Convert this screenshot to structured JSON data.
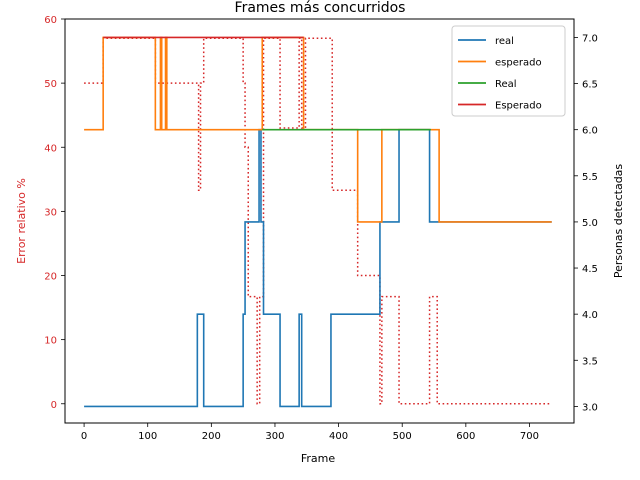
{
  "chart_data": {
    "type": "line",
    "title": "Frames más concurridos",
    "xlabel": "Frame",
    "ylabel_left": "Error relativo %",
    "ylabel_right": "Personas detectadas",
    "xlim": [
      -30,
      770
    ],
    "ylim_left": [
      -3,
      60
    ],
    "ylim_right": [
      2.82,
      7.2
    ],
    "xticks": [
      0,
      100,
      200,
      300,
      400,
      500,
      600,
      700
    ],
    "yticks_left": [
      0,
      10,
      20,
      30,
      40,
      50,
      60
    ],
    "yticks_right": [
      3.0,
      3.5,
      4.0,
      4.5,
      5.0,
      5.5,
      6.0,
      6.5,
      7.0
    ],
    "legend_position": "upper-right",
    "colors": {
      "real": "#1f77b4",
      "esperado": "#ff7f0e",
      "Real": "#2ca02c",
      "Esperado": "#d62728",
      "error": "#d62728",
      "left_axis_text": "#d62728"
    },
    "series": [
      {
        "name": "real",
        "axis": "right",
        "color": "#1f77b4",
        "style": "step",
        "points": [
          [
            0,
            3
          ],
          [
            178,
            3
          ],
          [
            178,
            4
          ],
          [
            188,
            4
          ],
          [
            188,
            3
          ],
          [
            250,
            3
          ],
          [
            250,
            4
          ],
          [
            253,
            4
          ],
          [
            253,
            5
          ],
          [
            275,
            5
          ],
          [
            275,
            6
          ],
          [
            278,
            6
          ],
          [
            278,
            5
          ],
          [
            282,
            5
          ],
          [
            282,
            4
          ],
          [
            308,
            4
          ],
          [
            308,
            3
          ],
          [
            338,
            3
          ],
          [
            338,
            4
          ],
          [
            342,
            4
          ],
          [
            342,
            3
          ],
          [
            388,
            3
          ],
          [
            388,
            4
          ],
          [
            465,
            4
          ],
          [
            465,
            5
          ],
          [
            495,
            5
          ],
          [
            495,
            6
          ],
          [
            543,
            6
          ],
          [
            543,
            5
          ],
          [
            735,
            5
          ]
        ]
      },
      {
        "name": "esperado",
        "axis": "right",
        "color": "#ff7f0e",
        "style": "step",
        "points": [
          [
            0,
            6
          ],
          [
            30,
            6
          ],
          [
            30,
            7
          ],
          [
            112,
            7
          ],
          [
            112,
            6
          ],
          [
            120,
            6
          ],
          [
            120,
            7
          ],
          [
            122,
            7
          ],
          [
            122,
            6
          ],
          [
            128,
            6
          ],
          [
            128,
            7
          ],
          [
            130,
            7
          ],
          [
            130,
            6
          ],
          [
            280,
            6
          ],
          [
            280,
            7
          ],
          [
            345,
            7
          ],
          [
            345,
            6
          ],
          [
            430,
            6
          ],
          [
            430,
            5
          ],
          [
            468,
            5
          ],
          [
            468,
            6
          ],
          [
            558,
            6
          ],
          [
            558,
            5
          ],
          [
            735,
            5
          ]
        ]
      },
      {
        "name": "Real",
        "axis": "right",
        "color": "#2ca02c",
        "style": "step",
        "points": [
          [
            280,
            6
          ],
          [
            545,
            6
          ]
        ]
      },
      {
        "name": "Esperado",
        "axis": "right",
        "color": "#d62728",
        "style": "step",
        "points": [
          [
            30,
            7
          ],
          [
            345,
            7
          ]
        ]
      },
      {
        "name": "",
        "axis": "left",
        "color": "#d62728",
        "style": "dotted-step",
        "points": [
          [
            0,
            50
          ],
          [
            30,
            50
          ],
          [
            30,
            57
          ],
          [
            112,
            57
          ],
          [
            112,
            50
          ],
          [
            180,
            50
          ],
          [
            180,
            33.3
          ],
          [
            183,
            33.3
          ],
          [
            183,
            50
          ],
          [
            188,
            50
          ],
          [
            188,
            57
          ],
          [
            250,
            57
          ],
          [
            250,
            50
          ],
          [
            253,
            50
          ],
          [
            253,
            40
          ],
          [
            258,
            40
          ],
          [
            258,
            16.7
          ],
          [
            272,
            16.7
          ],
          [
            272,
            0
          ],
          [
            276,
            0
          ],
          [
            276,
            16.7
          ],
          [
            282,
            16.7
          ],
          [
            282,
            57
          ],
          [
            308,
            57
          ],
          [
            308,
            43
          ],
          [
            338,
            43
          ],
          [
            338,
            57
          ],
          [
            342,
            57
          ],
          [
            342,
            43
          ],
          [
            348,
            43
          ],
          [
            348,
            57
          ],
          [
            390,
            57
          ],
          [
            390,
            33.3
          ],
          [
            430,
            33.3
          ],
          [
            430,
            20
          ],
          [
            465,
            20
          ],
          [
            465,
            0
          ],
          [
            468,
            0
          ],
          [
            468,
            16.7
          ],
          [
            495,
            16.7
          ],
          [
            495,
            0
          ],
          [
            543,
            0
          ],
          [
            543,
            16.7
          ],
          [
            555,
            16.7
          ],
          [
            555,
            0
          ],
          [
            735,
            0
          ]
        ]
      }
    ]
  }
}
